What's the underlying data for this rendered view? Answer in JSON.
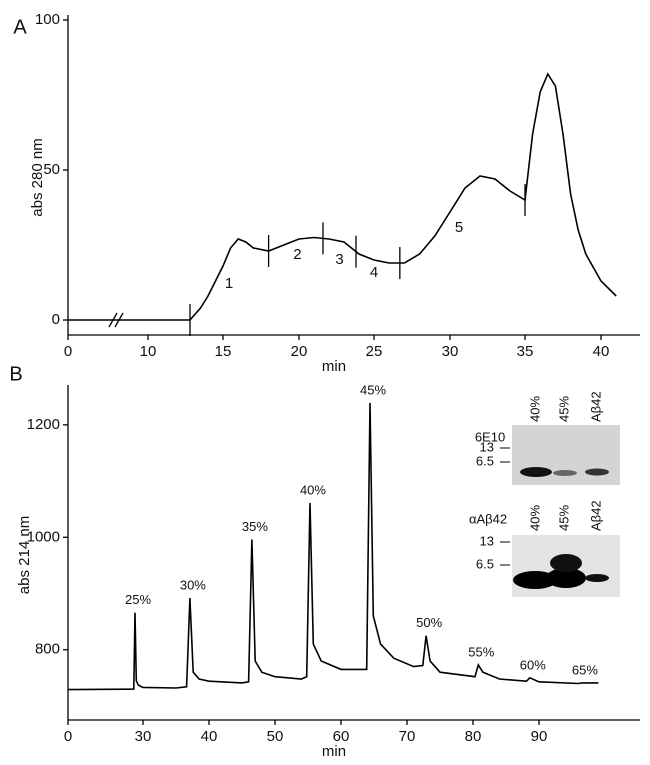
{
  "chart_data": [
    {
      "type": "line",
      "panel": "A",
      "x_label": "min",
      "y_label": "abs 280 nm",
      "xlim": [
        0,
        42
      ],
      "ylim": [
        -5,
        100
      ],
      "xticks": [
        0,
        10,
        15,
        20,
        25,
        30,
        35,
        40
      ],
      "yticks": [
        0,
        50,
        100
      ],
      "axis_break": 6,
      "color": "#000000",
      "x": [
        0,
        12.8,
        13.5,
        14,
        14.5,
        15,
        15.5,
        16,
        16.5,
        17,
        18,
        19,
        20,
        21,
        22,
        23,
        24,
        25,
        26,
        27,
        28,
        29,
        30,
        31,
        32,
        33,
        34,
        35,
        35.5,
        36,
        36.5,
        37,
        37.5,
        38,
        38.5,
        39,
        40,
        41
      ],
      "values": [
        0,
        0,
        4,
        8,
        13,
        18,
        24,
        27,
        26,
        24,
        23,
        25,
        27,
        27.5,
        27,
        26,
        22,
        20,
        19,
        19,
        22,
        28,
        36,
        44,
        48,
        47,
        43,
        40,
        62,
        76,
        82,
        78,
        62,
        42,
        30,
        22,
        13,
        8
      ],
      "fraction_markers": [
        12.8,
        18,
        21.6,
        23.8,
        26.7,
        35
      ],
      "annotations": [
        {
          "text": "1",
          "x": 15.4,
          "y": 12
        },
        {
          "text": "2",
          "x": 19.9,
          "y": 21.7
        },
        {
          "text": "3",
          "x": 22.7,
          "y": 20
        },
        {
          "text": "4",
          "x": 25,
          "y": 15.7
        },
        {
          "text": "5",
          "x": 30.6,
          "y": 30.7
        }
      ]
    },
    {
      "type": "line",
      "panel": "B",
      "x_label": "min",
      "y_label": "abs 214 nm",
      "xlim": [
        0,
        108
      ],
      "ylim": [
        675,
        1262
      ],
      "xticks": [
        0,
        30,
        40,
        50,
        60,
        70,
        80,
        90
      ],
      "yticks": [
        800,
        1000,
        1200
      ],
      "color": "#000000",
      "x": [
        0,
        26.3,
        26.8,
        27.3,
        28,
        29,
        30,
        35,
        36.6,
        37.1,
        37.6,
        38.5,
        40,
        45,
        46,
        46.5,
        47,
        48,
        50,
        54,
        54.8,
        55.3,
        55.8,
        57,
        60,
        63.9,
        64.4,
        64.9,
        66,
        68,
        71,
        72.4,
        72.9,
        73.5,
        75,
        80.3,
        80.8,
        81.5,
        84,
        88.1,
        88.6,
        90,
        96,
        96.5,
        99
      ],
      "values": [
        729,
        730,
        866,
        745,
        738,
        735,
        733,
        732,
        734,
        892,
        760,
        748,
        744,
        741,
        743,
        996,
        780,
        760,
        752,
        748,
        752,
        1061,
        810,
        780,
        765,
        765,
        1239,
        860,
        810,
        785,
        770,
        772,
        825,
        780,
        760,
        752,
        773,
        760,
        748,
        744,
        750,
        743,
        740,
        741,
        741
      ],
      "peak_labels": [
        {
          "text": "25%",
          "x": 26.8,
          "y": 866
        },
        {
          "text": "30%",
          "x": 37.1,
          "y": 892
        },
        {
          "text": "35%",
          "x": 46.5,
          "y": 996
        },
        {
          "text": "40%",
          "x": 55.3,
          "y": 1061
        },
        {
          "text": "45%",
          "x": 64.4,
          "y": 1239
        },
        {
          "text": "50%",
          "x": 72.9,
          "y": 825
        },
        {
          "text": "55%",
          "x": 80.8,
          "y": 773
        },
        {
          "text": "60%",
          "x": 88.6,
          "y": 750
        },
        {
          "text": "65%",
          "x": 96.5,
          "y": 741
        }
      ],
      "insets": [
        {
          "antibody": "6E10",
          "lanes": [
            "40%",
            "45%",
            "Aβ42"
          ],
          "markers": [
            "13",
            "6.5"
          ]
        },
        {
          "antibody": "αAβ42",
          "lanes": [
            "40%",
            "45%",
            "Aβ42"
          ],
          "markers": [
            "13",
            "6.5"
          ]
        }
      ]
    }
  ]
}
